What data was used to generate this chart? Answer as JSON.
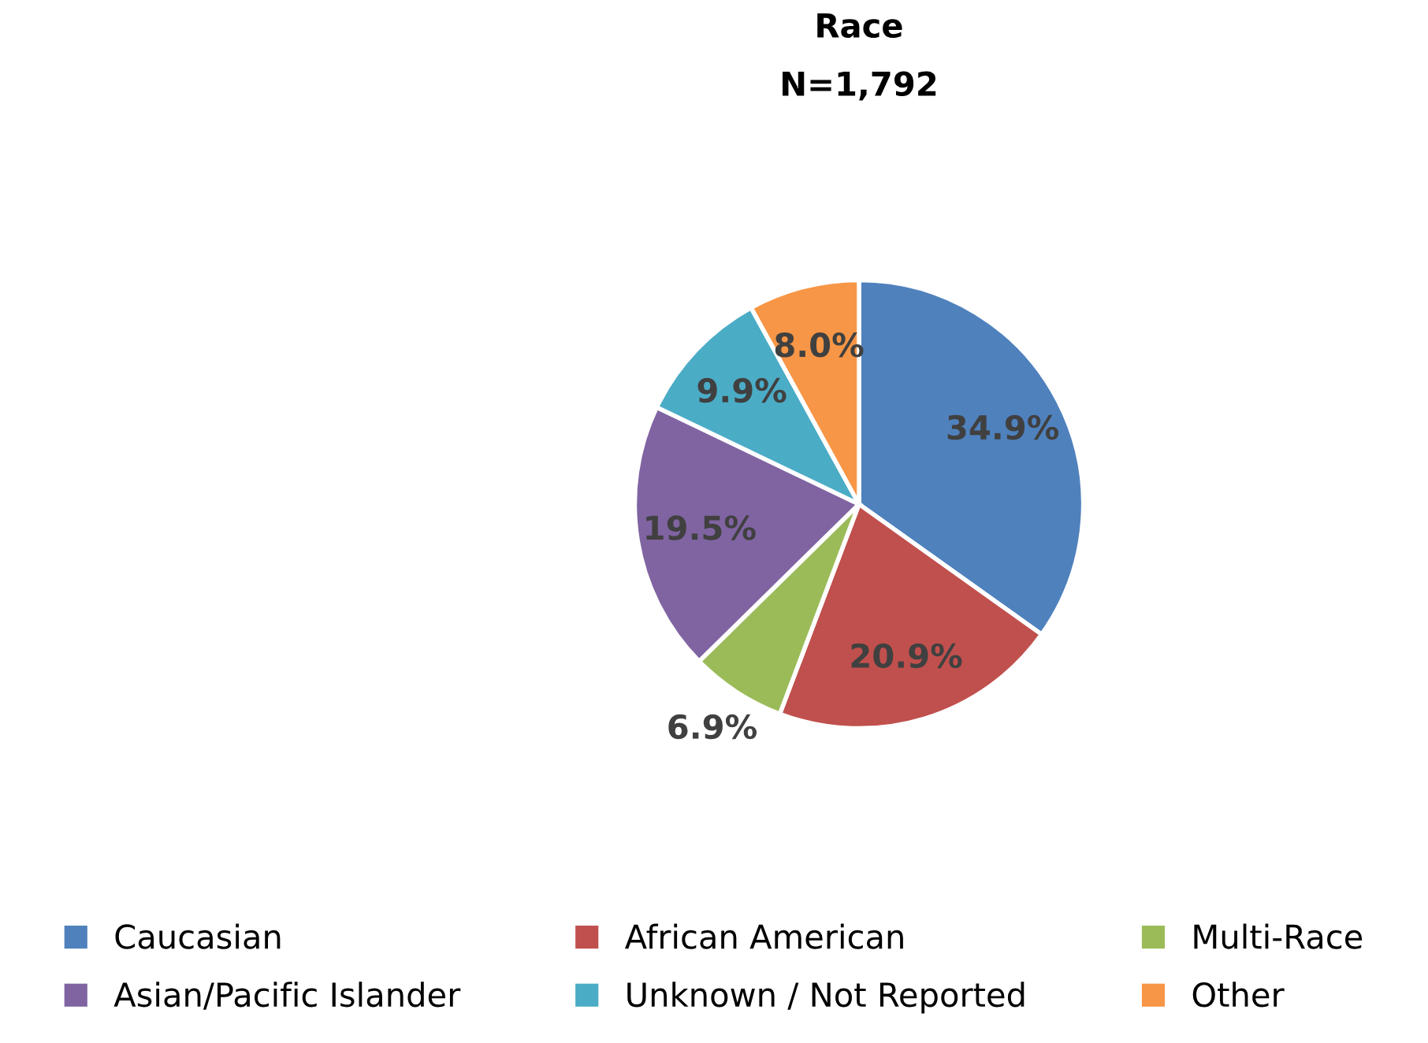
{
  "chart_data": {
    "type": "pie",
    "title": "Race",
    "subtitle": "N=1,792",
    "categories": [
      "Caucasian",
      "African American",
      "Multi-Race",
      "Asian/Pacific Islander",
      "Unknown / Not Reported",
      "Other"
    ],
    "values": [
      34.9,
      20.9,
      6.9,
      19.5,
      9.9,
      8.0
    ],
    "colors": [
      "#4f81bd",
      "#c0504d",
      "#9bbb59",
      "#8064a2",
      "#4bacc6",
      "#f79646"
    ],
    "value_labels": [
      "34.9%",
      "20.9%",
      "6.9%",
      "19.5%",
      "9.9%",
      "8.0%"
    ],
    "legend": "bottom"
  }
}
